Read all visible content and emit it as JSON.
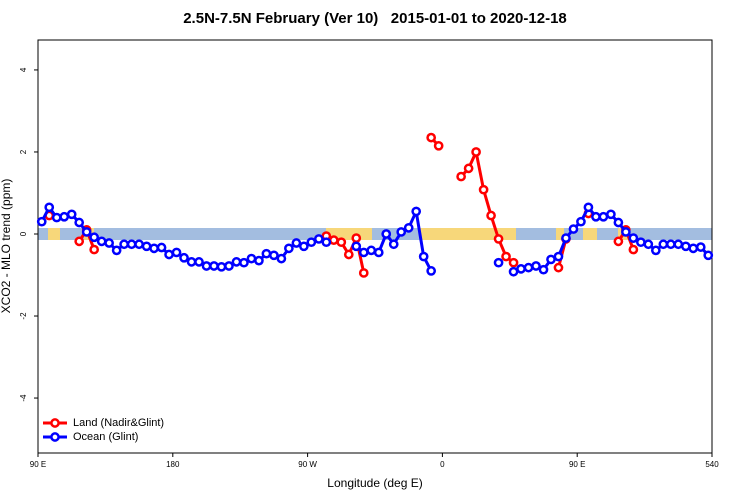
{
  "chart_data": {
    "type": "line",
    "title": "2.5N-7.5N February (Ver 10)   2015-01-01 to 2020-12-18",
    "x_label": "Longitude (deg E)",
    "y_label": "XCO2 - MLO trend (ppm)",
    "xlim": [
      90,
      540
    ],
    "ylim": [
      -5.34,
      4.73
    ],
    "xticks": [
      {
        "value": 90,
        "label": "90 E"
      },
      180,
      {
        "value": 270,
        "label": "90 W"
      },
      {
        "value": 360,
        "label": "0"
      },
      {
        "value": 450,
        "label": "90 E"
      },
      540
    ],
    "yticks": [
      -4,
      -2,
      0,
      2,
      4
    ],
    "legend": "bottom-left",
    "x": [
      92.5,
      97.5,
      102.5,
      107.5,
      112.5,
      117.5,
      122.5,
      127.5,
      132.5,
      137.5,
      142.5,
      147.5,
      152.5,
      157.5,
      162.5,
      167.5,
      172.5,
      177.5,
      182.5,
      187.5,
      192.5,
      197.5,
      202.5,
      207.5,
      212.5,
      217.5,
      222.5,
      227.5,
      232.5,
      237.5,
      242.5,
      247.5,
      252.5,
      257.5,
      262.5,
      267.5,
      272.5,
      277.5,
      282.5,
      287.5,
      292.5,
      297.5,
      302.5,
      307.5,
      312.5,
      317.5,
      322.5,
      327.5,
      332.5,
      337.5,
      342.5,
      347.5,
      352.5,
      357.5,
      362.5,
      367.5,
      372.5,
      377.5,
      382.5,
      387.5,
      392.5,
      397.5,
      402.5,
      407.5,
      412.5,
      417.5,
      422.5,
      427.5,
      432.5,
      437.5,
      442.5,
      447.5,
      452.5,
      457.5,
      462.5,
      467.5,
      472.5,
      477.5,
      482.5,
      487.5,
      492.5,
      497.5,
      502.5,
      507.5,
      512.5,
      517.5,
      522.5,
      527.5,
      532.5,
      537.5
    ],
    "series": [
      {
        "name": "Land (Nadir&Glint)",
        "color": "#ff0000",
        "values": [
          null,
          0.45,
          null,
          null,
          null,
          -0.18,
          0.1,
          -0.38,
          null,
          null,
          null,
          null,
          null,
          null,
          null,
          null,
          null,
          null,
          null,
          null,
          null,
          null,
          null,
          null,
          null,
          null,
          null,
          null,
          null,
          null,
          null,
          null,
          null,
          null,
          null,
          null,
          null,
          null,
          -0.05,
          -0.15,
          -0.2,
          -0.5,
          -0.1,
          -0.95,
          null,
          null,
          null,
          null,
          null,
          null,
          null,
          null,
          2.35,
          2.15,
          null,
          null,
          1.4,
          1.6,
          2.0,
          1.08,
          0.45,
          -0.12,
          -0.55,
          -0.7,
          null,
          null,
          null,
          null,
          null,
          -0.82,
          -0.12,
          null,
          null,
          0.5,
          null,
          null,
          null,
          -0.18,
          0.1,
          -0.38,
          null,
          null,
          null,
          null,
          null,
          null,
          null,
          null,
          null,
          null
        ]
      },
      {
        "name": "Ocean (Glint)",
        "color": "#0000ff",
        "values": [
          0.3,
          0.65,
          0.4,
          0.42,
          0.48,
          0.28,
          0.05,
          -0.08,
          -0.18,
          -0.22,
          -0.4,
          -0.25,
          -0.25,
          -0.25,
          -0.3,
          -0.35,
          -0.33,
          -0.5,
          -0.45,
          -0.58,
          -0.68,
          -0.68,
          -0.78,
          -0.78,
          -0.8,
          -0.78,
          -0.68,
          -0.7,
          -0.6,
          -0.65,
          -0.48,
          -0.52,
          -0.6,
          -0.35,
          -0.22,
          -0.3,
          -0.2,
          -0.12,
          -0.2,
          null,
          null,
          null,
          -0.3,
          -0.45,
          -0.4,
          -0.45,
          0.0,
          -0.25,
          0.05,
          0.15,
          0.55,
          -0.55,
          -0.9,
          null,
          null,
          null,
          null,
          null,
          null,
          null,
          null,
          -0.7,
          null,
          -0.92,
          -0.85,
          -0.82,
          -0.78,
          -0.87,
          -0.62,
          -0.55,
          -0.1,
          0.12,
          0.3,
          0.65,
          0.42,
          0.42,
          0.48,
          0.28,
          0.05,
          -0.1,
          -0.2,
          -0.25,
          -0.4,
          -0.25,
          -0.25,
          -0.25,
          -0.3,
          -0.35,
          -0.32,
          -0.52
        ]
      }
    ]
  }
}
